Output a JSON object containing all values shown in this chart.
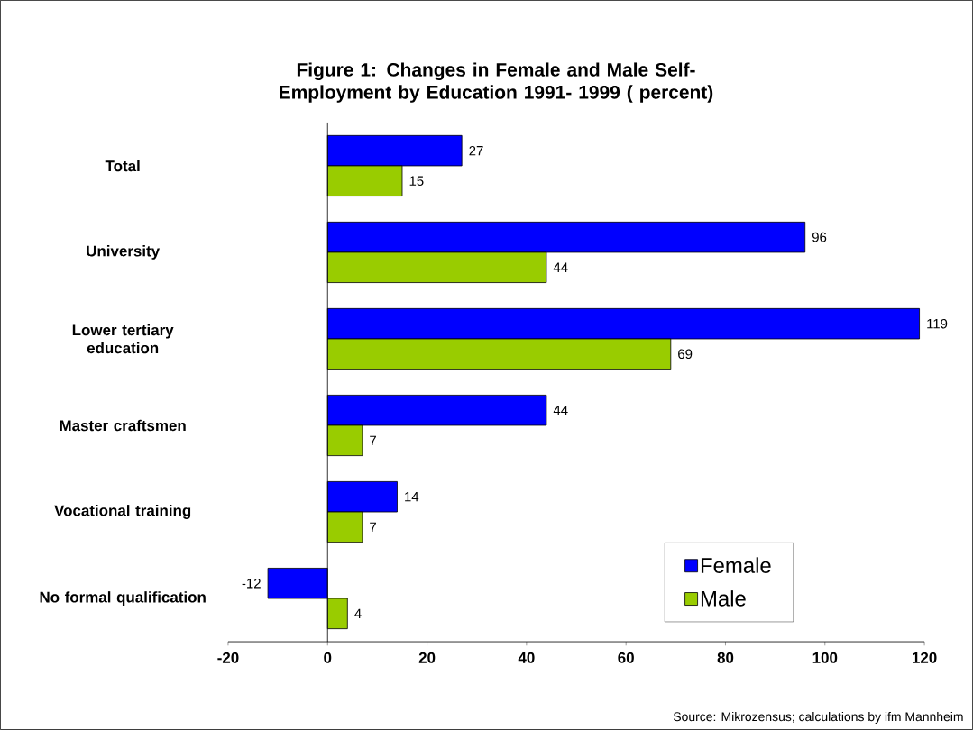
{
  "chart_data": {
    "type": "bar",
    "orientation": "horizontal",
    "title": "Figure 1: Changes in Female and Male Self-Employment by Education 1991- 1999 ( percent)",
    "categories": [
      "Total",
      "University",
      "Lower tertiary education",
      "Master craftsmen",
      "Vocational training",
      "No formal qualification"
    ],
    "series": [
      {
        "name": "Female",
        "color": "#0000ff",
        "values": [
          27,
          96,
          119,
          44,
          14,
          -12
        ]
      },
      {
        "name": "Male",
        "color": "#99cc00",
        "values": [
          15,
          44,
          69,
          7,
          7,
          4
        ]
      }
    ],
    "xlim": [
      -20,
      120
    ],
    "xticks": [
      -20,
      0,
      20,
      40,
      60,
      80,
      100,
      120
    ],
    "data_labels": true,
    "legend": "bottom right",
    "annotations": [
      "Source: Mikrozensus; calculations by ifm Mannheim"
    ]
  }
}
